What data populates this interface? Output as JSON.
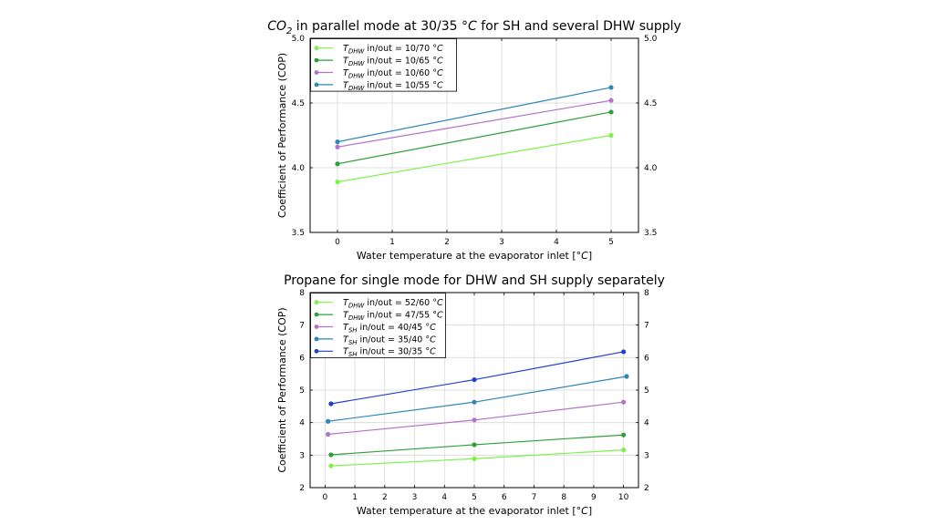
{
  "chart_data": [
    {
      "type": "line",
      "title_parts": [
        "CO",
        "2",
        " in parallel mode at 30/35 ",
        "°C",
        " for SH and several DHW supply"
      ],
      "xlabel_parts": [
        "Water temperature at the evaporator inlet [",
        "°C",
        "]"
      ],
      "ylabel": "Coefficient of Performance (COP)",
      "xlim": [
        -0.5,
        5.5
      ],
      "ylim": [
        3.5,
        5.0
      ],
      "xticks": [
        0,
        1,
        2,
        3,
        4,
        5
      ],
      "yticks": [
        "3.5",
        "4.0",
        "4.5",
        "5.0"
      ],
      "grid": true,
      "legend_position": "top-left",
      "series": [
        {
          "name_main": "T",
          "name_sub": "DHW",
          "name_rest": " in/out = 10/70 ",
          "name_unit": "°C",
          "color": "#7cf24a",
          "x": [
            0,
            5
          ],
          "y": [
            3.89,
            4.25
          ]
        },
        {
          "name_main": "T",
          "name_sub": "DHW",
          "name_rest": " in/out = 10/65 ",
          "name_unit": "°C",
          "color": "#2ea03a",
          "x": [
            0,
            5
          ],
          "y": [
            4.03,
            4.43
          ]
        },
        {
          "name_main": "T",
          "name_sub": "DHW",
          "name_rest": " in/out = 10/60 ",
          "name_unit": "°C",
          "color": "#b273c8",
          "x": [
            0,
            5
          ],
          "y": [
            4.16,
            4.52
          ]
        },
        {
          "name_main": "T",
          "name_sub": "DHW",
          "name_rest": " in/out = 10/55 ",
          "name_unit": "°C",
          "color": "#2f86b8",
          "x": [
            0,
            5
          ],
          "y": [
            4.2,
            4.62
          ]
        }
      ]
    },
    {
      "type": "line",
      "title_parts": [
        "Propane for single mode for DHW and SH supply separately"
      ],
      "xlabel_parts": [
        "Water temperature at the evaporator inlet [",
        "°C",
        "]"
      ],
      "ylabel": "Coefficient of Performance (COP)",
      "xlim": [
        -0.5,
        10.5
      ],
      "ylim": [
        2,
        8
      ],
      "xticks": [
        0,
        1,
        2,
        3,
        4,
        5,
        6,
        7,
        8,
        9,
        10
      ],
      "yticks": [
        "2",
        "3",
        "4",
        "5",
        "6",
        "7",
        "8"
      ],
      "grid": true,
      "legend_position": "top-left",
      "series": [
        {
          "name_main": "T",
          "name_sub": "DHW",
          "name_rest": " in/out = 52/60 ",
          "name_unit": "°C",
          "color": "#7cf24a",
          "x": [
            0.2,
            5,
            10
          ],
          "y": [
            2.67,
            2.89,
            3.16
          ]
        },
        {
          "name_main": "T",
          "name_sub": "DHW",
          "name_rest": " in/out = 47/55 ",
          "name_unit": "°C",
          "color": "#2ea03a",
          "x": [
            0.2,
            5,
            10
          ],
          "y": [
            3.01,
            3.32,
            3.62
          ]
        },
        {
          "name_main": "T",
          "name_sub": "SH",
          "name_rest": " in/out = 40/45 ",
          "name_unit": "°C",
          "color": "#b273c8",
          "x": [
            0.1,
            5,
            10
          ],
          "y": [
            3.64,
            4.08,
            4.63
          ]
        },
        {
          "name_main": "T",
          "name_sub": "SH",
          "name_rest": " in/out = 35/40 ",
          "name_unit": "°C",
          "color": "#2f86b8",
          "x": [
            0.1,
            5,
            10.1
          ],
          "y": [
            4.04,
            4.63,
            5.42
          ]
        },
        {
          "name_main": "T",
          "name_sub": "SH",
          "name_rest": " in/out = 30/35 ",
          "name_unit": "°C",
          "color": "#1f3fd0",
          "x": [
            0.2,
            5,
            10
          ],
          "y": [
            4.58,
            5.32,
            6.18
          ]
        }
      ]
    }
  ]
}
